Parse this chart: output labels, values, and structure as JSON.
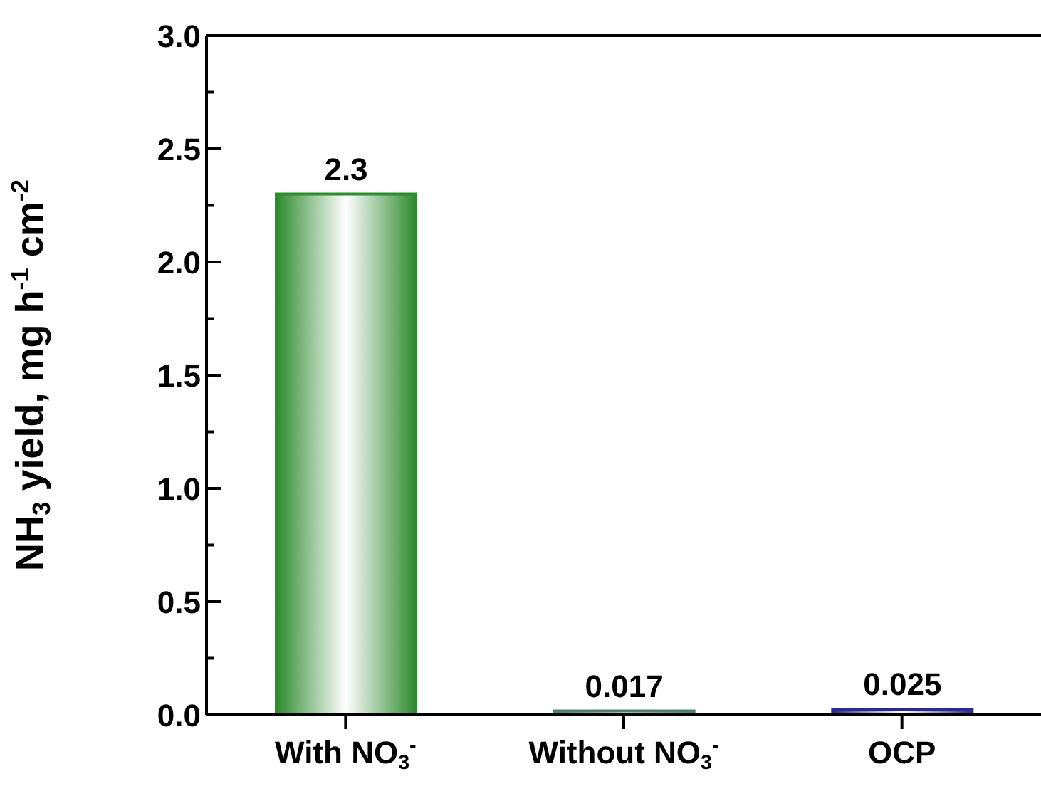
{
  "chart_data": {
    "type": "bar",
    "categories": [
      "With NO$_{3}$$^{-}$",
      "Without NO$_{3}$$^{-}$",
      "OCP"
    ],
    "values": [
      2.3,
      0.017,
      0.025
    ],
    "colors": [
      "#2e8b2e",
      "#4f7f6f",
      "#2b2b8f"
    ],
    "ylabel": "NH$_{3}$ yield, mg h$^{-1}$ cm$^{-2}$",
    "ylim": [
      0,
      3
    ],
    "yticks": [
      {
        "value": 0,
        "label": "0.0"
      },
      {
        "value": 0.25,
        "label": null
      },
      {
        "value": 0.5,
        "label": "0.5"
      },
      {
        "value": 0.75,
        "label": null
      },
      {
        "value": 1,
        "label": "1.0"
      },
      {
        "value": 1.25,
        "label": null
      },
      {
        "value": 1.5,
        "label": "1.5"
      },
      {
        "value": 1.75,
        "label": null
      },
      {
        "value": 2,
        "label": "2.0"
      },
      {
        "value": 2.25,
        "label": null
      },
      {
        "value": 2.5,
        "label": "2.5"
      },
      {
        "value": 2.75,
        "label": null
      },
      {
        "value": 3,
        "label": "3.0"
      }
    ],
    "data_labels": true,
    "grid": false,
    "legend": false
  }
}
